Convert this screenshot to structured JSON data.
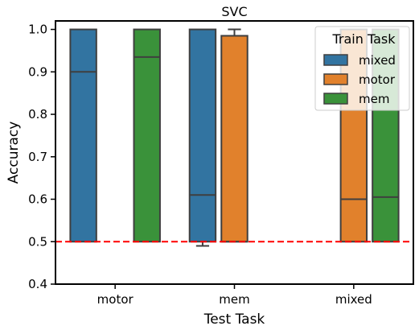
{
  "chart_data": {
    "type": "box",
    "title": "SVC",
    "xlabel": "Test Task",
    "ylabel": "Accuracy",
    "ylim": [
      0.4,
      1.02
    ],
    "yticks": [
      "0.4",
      "0.5",
      "0.6",
      "0.7",
      "0.8",
      "0.9",
      "1.0"
    ],
    "categories": [
      "motor",
      "mem",
      "mixed"
    ],
    "legend": {
      "title": "Train Task",
      "position": "top-right"
    },
    "reference_line": {
      "y": 0.5,
      "color": "#ff0000",
      "style": "dashed"
    },
    "series": [
      {
        "name": "mixed",
        "color": "#3274a1",
        "boxes": [
          {
            "category": "motor",
            "q1": 0.5,
            "median": 0.9,
            "q3": 1.0,
            "whisker_low": 0.5,
            "whisker_high": 1.0
          },
          {
            "category": "mem",
            "q1": 0.5,
            "median": 0.61,
            "q3": 1.0,
            "whisker_low": 0.49,
            "whisker_high": 1.0
          }
        ]
      },
      {
        "name": "motor",
        "color": "#e1812c",
        "boxes": [
          {
            "category": "mem",
            "q1": 0.5,
            "median": 0.5,
            "q3": 0.985,
            "whisker_low": 0.5,
            "whisker_high": 1.0
          },
          {
            "category": "mixed",
            "q1": 0.5,
            "median": 0.6,
            "q3": 1.0,
            "whisker_low": 0.5,
            "whisker_high": 1.0
          }
        ]
      },
      {
        "name": "mem",
        "color": "#3a923a",
        "boxes": [
          {
            "category": "motor",
            "q1": 0.5,
            "median": 0.935,
            "q3": 1.0,
            "whisker_low": 0.5,
            "whisker_high": 1.0
          },
          {
            "category": "mixed",
            "q1": 0.5,
            "median": 0.605,
            "q3": 1.0,
            "whisker_low": 0.5,
            "whisker_high": 1.0
          }
        ]
      }
    ]
  }
}
